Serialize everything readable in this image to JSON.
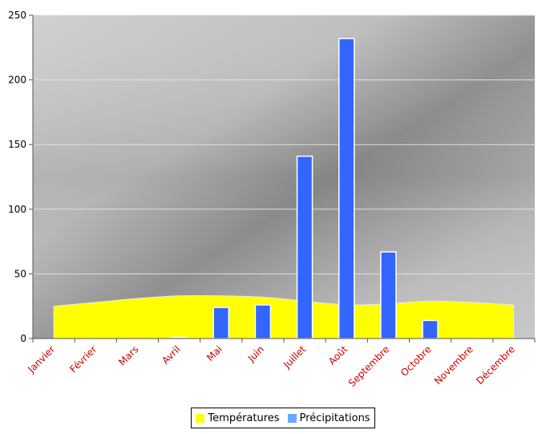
{
  "chart_data": {
    "type": "bar",
    "categories": [
      "Janvier",
      "Février",
      "Mars",
      "Avril",
      "Mai",
      "Juin",
      "Juillet",
      "Août",
      "Septembre",
      "Octobre",
      "Novembre",
      "Décembre"
    ],
    "ylim": [
      0,
      250
    ],
    "yticks": [
      0,
      50,
      100,
      150,
      200,
      250
    ],
    "grid": true,
    "legend_position": "bottom",
    "series": [
      {
        "name": "Températures",
        "type": "area",
        "color": "#ffff00",
        "values": [
          25,
          28,
          31,
          33,
          33,
          32,
          29,
          26,
          27,
          29,
          28,
          26
        ]
      },
      {
        "name": "Précipitations",
        "type": "bar",
        "color": "#3366ff",
        "legend_color": "#66aaff",
        "values": [
          0,
          0,
          0,
          1,
          24,
          26,
          141,
          232,
          67,
          14,
          0,
          0
        ]
      }
    ]
  }
}
